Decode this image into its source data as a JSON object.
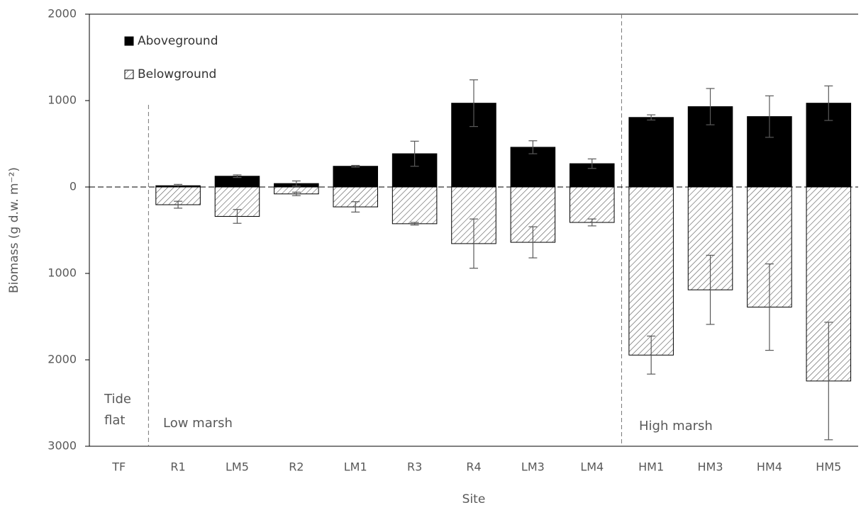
{
  "chart_data": {
    "type": "bar",
    "stacked_sign": true,
    "y_label": "Biomass (g d.w. m⁻²)",
    "x_label": "Site",
    "categories": [
      "TF",
      "R1",
      "LM5",
      "R2",
      "LM1",
      "R3",
      "R4",
      "LM3",
      "LM4",
      "HM1",
      "HM3",
      "HM4",
      "HM5"
    ],
    "series": [
      {
        "name": "Aboveground",
        "color": "#000000",
        "values": [
          null,
          15,
          125,
          40,
          240,
          385,
          970,
          460,
          270,
          805,
          930,
          815,
          970
        ],
        "errors": [
          null,
          15,
          15,
          30,
          10,
          145,
          270,
          75,
          55,
          30,
          210,
          240,
          200
        ]
      },
      {
        "name": "Belowground",
        "color": "#595959",
        "pattern": "hatch",
        "values": [
          null,
          -205,
          -340,
          -80,
          -230,
          -425,
          -655,
          -640,
          -410,
          -1945,
          -1190,
          -1390,
          -2245
        ],
        "errors": [
          null,
          40,
          80,
          20,
          60,
          15,
          285,
          180,
          40,
          220,
          400,
          500,
          680
        ]
      }
    ],
    "ylim": [
      -3000,
      2000
    ],
    "yticks": [
      {
        "value": -3000,
        "label": "3000"
      },
      {
        "value": -2000,
        "label": "2000"
      },
      {
        "value": -1000,
        "label": "1000"
      },
      0,
      1000,
      2000
    ],
    "annotations": [
      "Tide",
      "flat",
      "Low marsh",
      "High marsh"
    ],
    "grid": false
  }
}
